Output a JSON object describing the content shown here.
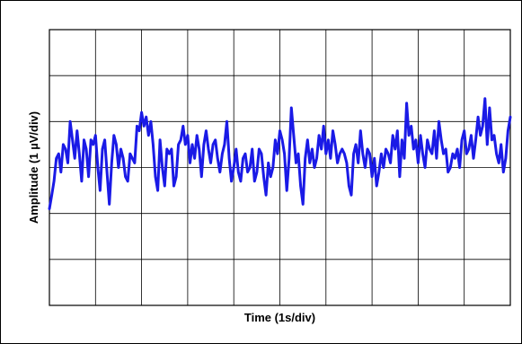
{
  "chart_data": {
    "type": "line",
    "title": "",
    "xlabel": "Time (1s/div)",
    "ylabel": "Amplitude (1 µV/div)",
    "grid": true,
    "x_divisions": 10,
    "y_divisions": 6,
    "xlim": [
      0,
      10
    ],
    "ylim": [
      -3,
      3
    ],
    "series": [
      {
        "color": "#1a1ae6",
        "x": [
          0.0,
          0.05,
          0.1,
          0.15,
          0.2,
          0.25,
          0.3,
          0.35,
          0.4,
          0.45,
          0.5,
          0.55,
          0.6,
          0.65,
          0.7,
          0.75,
          0.8,
          0.85,
          0.9,
          0.95,
          1.0,
          1.05,
          1.1,
          1.15,
          1.2,
          1.25,
          1.3,
          1.35,
          1.4,
          1.45,
          1.5,
          1.55,
          1.6,
          1.65,
          1.7,
          1.75,
          1.8,
          1.85,
          1.9,
          1.95,
          2.0,
          2.05,
          2.1,
          2.15,
          2.2,
          2.25,
          2.3,
          2.35,
          2.4,
          2.45,
          2.5,
          2.55,
          2.6,
          2.65,
          2.7,
          2.75,
          2.8,
          2.85,
          2.9,
          2.95,
          3.0,
          3.05,
          3.1,
          3.15,
          3.2,
          3.25,
          3.3,
          3.35,
          3.4,
          3.45,
          3.5,
          3.55,
          3.6,
          3.65,
          3.7,
          3.75,
          3.8,
          3.85,
          3.9,
          3.95,
          4.0,
          4.05,
          4.1,
          4.15,
          4.2,
          4.25,
          4.3,
          4.35,
          4.4,
          4.45,
          4.5,
          4.55,
          4.6,
          4.65,
          4.7,
          4.75,
          4.8,
          4.85,
          4.9,
          4.95,
          5.0,
          5.05,
          5.1,
          5.15,
          5.2,
          5.25,
          5.3,
          5.35,
          5.4,
          5.45,
          5.5,
          5.55,
          5.6,
          5.65,
          5.7,
          5.75,
          5.8,
          5.85,
          5.9,
          5.95,
          6.0,
          6.05,
          6.1,
          6.15,
          6.2,
          6.25,
          6.3,
          6.35,
          6.4,
          6.45,
          6.5,
          6.55,
          6.6,
          6.65,
          6.7,
          6.75,
          6.8,
          6.85,
          6.9,
          6.95,
          7.0,
          7.05,
          7.1,
          7.15,
          7.2,
          7.25,
          7.3,
          7.35,
          7.4,
          7.45,
          7.5,
          7.55,
          7.6,
          7.65,
          7.7,
          7.75,
          7.8,
          7.85,
          7.9,
          7.95,
          8.0,
          8.05,
          8.1,
          8.15,
          8.2,
          8.25,
          8.3,
          8.35,
          8.4,
          8.45,
          8.5,
          8.55,
          8.6,
          8.65,
          8.7,
          8.75,
          8.8,
          8.85,
          8.9,
          8.95,
          9.0,
          9.05,
          9.1,
          9.15,
          9.2,
          9.25,
          9.3,
          9.35,
          9.4,
          9.45,
          9.5,
          9.55,
          9.6,
          9.65,
          9.7,
          9.75,
          9.8,
          9.85,
          9.9,
          9.95,
          10.0
        ],
        "values": [
          -0.9,
          -0.6,
          -0.3,
          0.2,
          0.3,
          -0.1,
          0.5,
          0.4,
          0.1,
          1.0,
          0.6,
          0.2,
          0.8,
          0.3,
          -0.3,
          0.6,
          0.4,
          -0.2,
          0.6,
          0.5,
          0.7,
          0.0,
          -0.5,
          0.4,
          0.6,
          -0.1,
          -0.8,
          0.1,
          0.7,
          0.5,
          0.0,
          0.4,
          0.2,
          -0.2,
          -0.3,
          0.3,
          0.2,
          0.1,
          0.9,
          0.8,
          1.2,
          0.9,
          1.1,
          0.7,
          1.0,
          0.5,
          -0.2,
          -0.5,
          0.6,
          0.0,
          -0.4,
          0.4,
          0.3,
          0.4,
          -0.4,
          -0.2,
          0.5,
          0.6,
          0.9,
          0.5,
          0.7,
          0.1,
          0.5,
          0.2,
          0.7,
          0.4,
          -0.2,
          0.5,
          0.8,
          0.4,
          0.1,
          0.5,
          0.6,
          0.2,
          -0.1,
          0.3,
          0.5,
          1.0,
          0.2,
          -0.3,
          0.0,
          0.4,
          -0.1,
          -0.3,
          0.2,
          0.3,
          -0.1,
          0.0,
          0.4,
          -0.3,
          -0.1,
          0.4,
          0.3,
          -0.2,
          -0.6,
          0.1,
          -0.2,
          0.0,
          0.6,
          0.3,
          0.8,
          0.6,
          0.3,
          -0.5,
          0.2,
          1.3,
          0.7,
          0.1,
          0.3,
          -0.4,
          -0.8,
          0.2,
          0.6,
          0.1,
          0.4,
          0.0,
          0.2,
          0.7,
          0.4,
          0.9,
          0.3,
          0.6,
          0.2,
          0.8,
          0.5,
          0.1,
          0.3,
          0.4,
          0.3,
          0.1,
          -0.4,
          -0.6,
          0.3,
          0.5,
          0.1,
          0.8,
          0.3,
          0.0,
          0.4,
          0.3,
          -0.2,
          0.2,
          -0.4,
          -0.1,
          0.3,
          0.0,
          0.4,
          0.3,
          0.1,
          0.7,
          0.4,
          0.8,
          -0.2,
          0.6,
          0.2,
          1.4,
          0.7,
          0.9,
          0.4,
          0.6,
          0.1,
          0.7,
          0.3,
          0.0,
          0.6,
          0.4,
          0.3,
          0.8,
          0.2,
          1.0,
          0.6,
          0.3,
          0.4,
          -0.1,
          0.0,
          0.3,
          0.2,
          0.4,
          0.0,
          0.6,
          0.8,
          0.3,
          0.4,
          0.7,
          0.2,
          0.6,
          1.1,
          0.7,
          0.9,
          1.5,
          0.5,
          1.3,
          0.6,
          0.7,
          0.3,
          0.1,
          0.5,
          -0.1,
          0.2,
          0.8,
          1.1
        ]
      }
    ]
  }
}
